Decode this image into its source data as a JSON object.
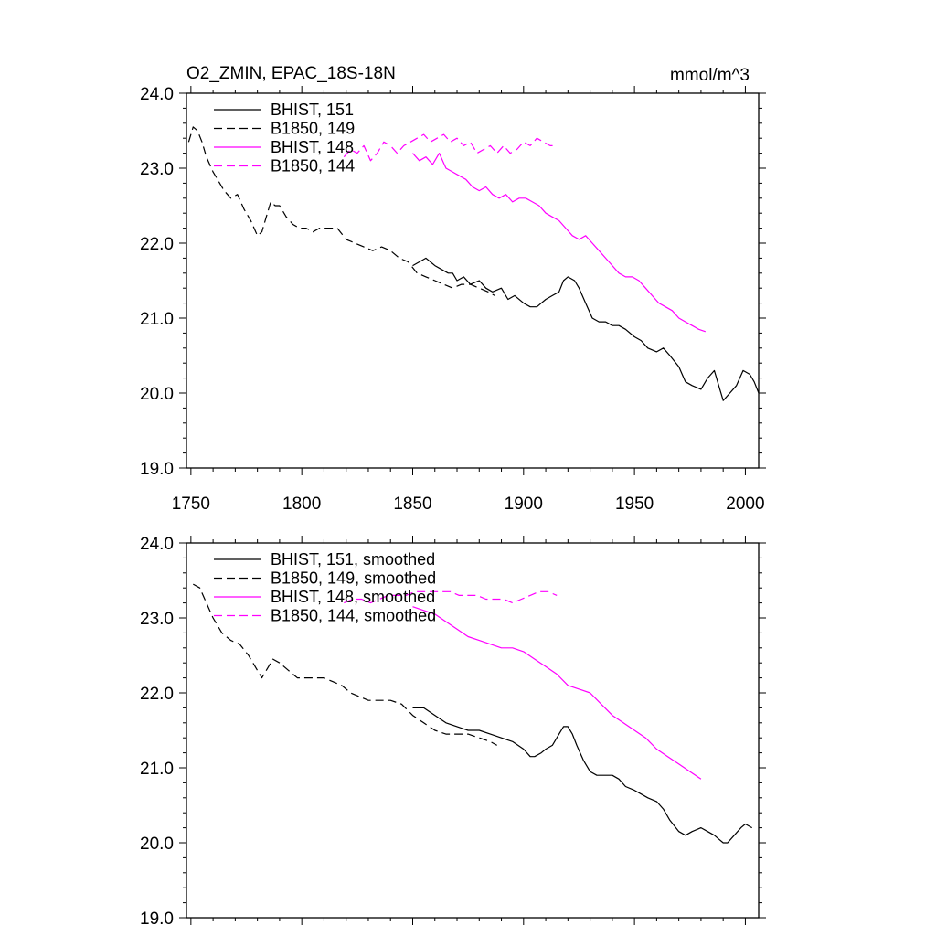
{
  "colors": {
    "black": "#000000",
    "magenta": "#ff00ff"
  },
  "chart_data": [
    {
      "type": "line",
      "title": "O2_ZMIN, EPAC_18S-18N",
      "units": "mmol/m^3",
      "xlim": [
        1748,
        2006
      ],
      "ylim": [
        19.0,
        24.0
      ],
      "xticks": [
        1750,
        1800,
        1850,
        1900,
        1950,
        2000
      ],
      "yticks": [
        19.0,
        20.0,
        21.0,
        22.0,
        23.0,
        24.0
      ],
      "xtick_labels_shown": true,
      "legend_position": "top-left",
      "series": [
        {
          "name": "BHIST, 151",
          "color": "#000000",
          "dash": "solid",
          "x": [
            1850,
            1853,
            1856,
            1858,
            1860,
            1863,
            1866,
            1868,
            1870,
            1873,
            1876,
            1880,
            1883,
            1886,
            1890,
            1893,
            1896,
            1900,
            1903,
            1906,
            1908,
            1910,
            1913,
            1916,
            1918,
            1920,
            1923,
            1925,
            1928,
            1931,
            1934,
            1937,
            1940,
            1943,
            1946,
            1950,
            1953,
            1956,
            1960,
            1963,
            1966,
            1970,
            1973,
            1976,
            1980,
            1983,
            1986,
            1988,
            1990,
            1993,
            1996,
            1999,
            2002,
            2004,
            2006
          ],
          "y": [
            21.7,
            21.75,
            21.8,
            21.75,
            21.7,
            21.65,
            21.6,
            21.6,
            21.5,
            21.55,
            21.45,
            21.5,
            21.4,
            21.35,
            21.4,
            21.25,
            21.3,
            21.2,
            21.15,
            21.15,
            21.2,
            21.25,
            21.3,
            21.35,
            21.5,
            21.55,
            21.5,
            21.4,
            21.2,
            21.0,
            20.95,
            20.95,
            20.9,
            20.9,
            20.85,
            20.75,
            20.7,
            20.6,
            20.55,
            20.6,
            20.5,
            20.35,
            20.15,
            20.1,
            20.05,
            20.2,
            20.3,
            20.1,
            19.9,
            20.0,
            20.1,
            20.3,
            20.25,
            20.15,
            20.0
          ]
        },
        {
          "name": "B1850, 149",
          "color": "#000000",
          "dash": "dash",
          "x": [
            1749,
            1751,
            1753,
            1755,
            1757,
            1760,
            1763,
            1765,
            1768,
            1771,
            1774,
            1777,
            1780,
            1782,
            1784,
            1786,
            1788,
            1790,
            1793,
            1796,
            1799,
            1802,
            1805,
            1808,
            1812,
            1816,
            1820,
            1824,
            1828,
            1832,
            1836,
            1840,
            1844,
            1848,
            1852,
            1856,
            1860,
            1864,
            1868,
            1872,
            1876,
            1880,
            1884,
            1887
          ],
          "y": [
            23.35,
            23.55,
            23.5,
            23.35,
            23.15,
            22.95,
            22.8,
            22.7,
            22.6,
            22.65,
            22.45,
            22.3,
            22.1,
            22.15,
            22.35,
            22.55,
            22.5,
            22.5,
            22.35,
            22.25,
            22.2,
            22.2,
            22.15,
            22.2,
            22.2,
            22.2,
            22.05,
            22.0,
            21.95,
            21.9,
            21.95,
            21.9,
            21.8,
            21.75,
            21.6,
            21.55,
            21.5,
            21.45,
            21.4,
            21.45,
            21.45,
            21.4,
            21.35,
            21.3
          ]
        },
        {
          "name": "BHIST, 148",
          "color": "#ff00ff",
          "dash": "solid",
          "x": [
            1850,
            1853,
            1856,
            1859,
            1862,
            1865,
            1868,
            1871,
            1874,
            1877,
            1880,
            1883,
            1886,
            1889,
            1892,
            1895,
            1898,
            1901,
            1904,
            1907,
            1910,
            1913,
            1916,
            1919,
            1922,
            1925,
            1928,
            1931,
            1934,
            1937,
            1940,
            1943,
            1946,
            1949,
            1952,
            1955,
            1958,
            1961,
            1964,
            1967,
            1970,
            1973,
            1976,
            1979,
            1982
          ],
          "y": [
            23.2,
            23.1,
            23.15,
            23.05,
            23.2,
            23.0,
            22.95,
            22.9,
            22.85,
            22.75,
            22.7,
            22.75,
            22.65,
            22.6,
            22.65,
            22.55,
            22.6,
            22.6,
            22.55,
            22.5,
            22.4,
            22.35,
            22.3,
            22.2,
            22.1,
            22.05,
            22.1,
            22.0,
            21.9,
            21.8,
            21.7,
            21.6,
            21.55,
            21.55,
            21.5,
            21.4,
            21.3,
            21.2,
            21.15,
            21.1,
            21.0,
            20.95,
            20.9,
            20.85,
            20.82
          ]
        },
        {
          "name": "B1850, 144",
          "color": "#ff00ff",
          "dash": "dash",
          "x": [
            1819,
            1822,
            1825,
            1828,
            1831,
            1834,
            1837,
            1840,
            1843,
            1846,
            1849,
            1852,
            1855,
            1858,
            1861,
            1864,
            1867,
            1870,
            1873,
            1876,
            1879,
            1882,
            1885,
            1888,
            1891,
            1894,
            1897,
            1900,
            1903,
            1906,
            1909,
            1912,
            1915
          ],
          "y": [
            23.15,
            23.25,
            23.2,
            23.3,
            23.1,
            23.2,
            23.35,
            23.3,
            23.2,
            23.3,
            23.35,
            23.4,
            23.45,
            23.35,
            23.4,
            23.45,
            23.35,
            23.4,
            23.3,
            23.35,
            23.2,
            23.25,
            23.3,
            23.2,
            23.3,
            23.2,
            23.25,
            23.35,
            23.3,
            23.4,
            23.35,
            23.3,
            23.3
          ]
        }
      ]
    },
    {
      "type": "line",
      "title": "",
      "units": "",
      "xlim": [
        1748,
        2006
      ],
      "ylim": [
        19.0,
        24.0
      ],
      "xticks": [
        1750,
        1800,
        1850,
        1900,
        1950,
        2000
      ],
      "yticks": [
        19.0,
        20.0,
        21.0,
        22.0,
        23.0,
        24.0
      ],
      "xtick_labels_shown": false,
      "legend_position": "top-left",
      "series": [
        {
          "name": "BHIST, 151, smoothed",
          "color": "#000000",
          "dash": "solid",
          "x": [
            1850,
            1855,
            1860,
            1865,
            1870,
            1875,
            1880,
            1885,
            1890,
            1895,
            1900,
            1903,
            1905,
            1908,
            1910,
            1913,
            1916,
            1918,
            1920,
            1922,
            1924,
            1927,
            1930,
            1933,
            1936,
            1940,
            1943,
            1946,
            1950,
            1953,
            1956,
            1960,
            1963,
            1966,
            1970,
            1973,
            1976,
            1980,
            1983,
            1986,
            1988,
            1990,
            1992,
            1995,
            1998,
            2000,
            2003
          ],
          "y": [
            21.8,
            21.8,
            21.7,
            21.6,
            21.55,
            21.5,
            21.5,
            21.45,
            21.4,
            21.35,
            21.25,
            21.15,
            21.15,
            21.2,
            21.25,
            21.3,
            21.45,
            21.55,
            21.55,
            21.45,
            21.3,
            21.1,
            20.95,
            20.9,
            20.9,
            20.9,
            20.85,
            20.75,
            20.7,
            20.65,
            20.6,
            20.55,
            20.45,
            20.3,
            20.15,
            20.1,
            20.15,
            20.2,
            20.15,
            20.1,
            20.05,
            20.0,
            20.0,
            20.1,
            20.2,
            20.25,
            20.2
          ]
        },
        {
          "name": "B1850, 149, smoothed",
          "color": "#000000",
          "dash": "dash",
          "x": [
            1751,
            1754,
            1757,
            1760,
            1764,
            1768,
            1772,
            1776,
            1780,
            1782,
            1784,
            1787,
            1790,
            1794,
            1798,
            1802,
            1806,
            1810,
            1814,
            1818,
            1822,
            1826,
            1830,
            1835,
            1840,
            1845,
            1850,
            1855,
            1860,
            1865,
            1870,
            1875,
            1880,
            1885,
            1888
          ],
          "y": [
            23.45,
            23.4,
            23.2,
            23.0,
            22.8,
            22.7,
            22.65,
            22.5,
            22.3,
            22.2,
            22.3,
            22.45,
            22.4,
            22.3,
            22.2,
            22.2,
            22.2,
            22.2,
            22.15,
            22.1,
            22.0,
            21.95,
            21.9,
            21.9,
            21.9,
            21.85,
            21.7,
            21.6,
            21.5,
            21.45,
            21.45,
            21.45,
            21.4,
            21.35,
            21.3
          ]
        },
        {
          "name": "BHIST, 148, smoothed",
          "color": "#ff00ff",
          "dash": "solid",
          "x": [
            1850,
            1855,
            1860,
            1865,
            1870,
            1875,
            1880,
            1885,
            1890,
            1895,
            1900,
            1905,
            1910,
            1915,
            1920,
            1925,
            1930,
            1935,
            1940,
            1945,
            1950,
            1955,
            1960,
            1965,
            1970,
            1975,
            1980
          ],
          "y": [
            23.15,
            23.1,
            23.05,
            22.95,
            22.85,
            22.75,
            22.7,
            22.65,
            22.6,
            22.6,
            22.55,
            22.45,
            22.35,
            22.25,
            22.1,
            22.05,
            22.0,
            21.85,
            21.7,
            21.6,
            21.5,
            21.4,
            21.25,
            21.15,
            21.05,
            20.95,
            20.85
          ]
        },
        {
          "name": "B1850, 144, smoothed",
          "color": "#ff00ff",
          "dash": "dash",
          "x": [
            1819,
            1823,
            1827,
            1831,
            1835,
            1839,
            1843,
            1847,
            1851,
            1855,
            1859,
            1863,
            1867,
            1871,
            1875,
            1879,
            1883,
            1887,
            1891,
            1895,
            1899,
            1903,
            1907,
            1911,
            1915
          ],
          "y": [
            23.2,
            23.25,
            23.25,
            23.2,
            23.25,
            23.3,
            23.3,
            23.3,
            23.35,
            23.35,
            23.35,
            23.35,
            23.35,
            23.3,
            23.3,
            23.3,
            23.25,
            23.25,
            23.25,
            23.2,
            23.25,
            23.3,
            23.35,
            23.35,
            23.3
          ]
        }
      ]
    }
  ]
}
